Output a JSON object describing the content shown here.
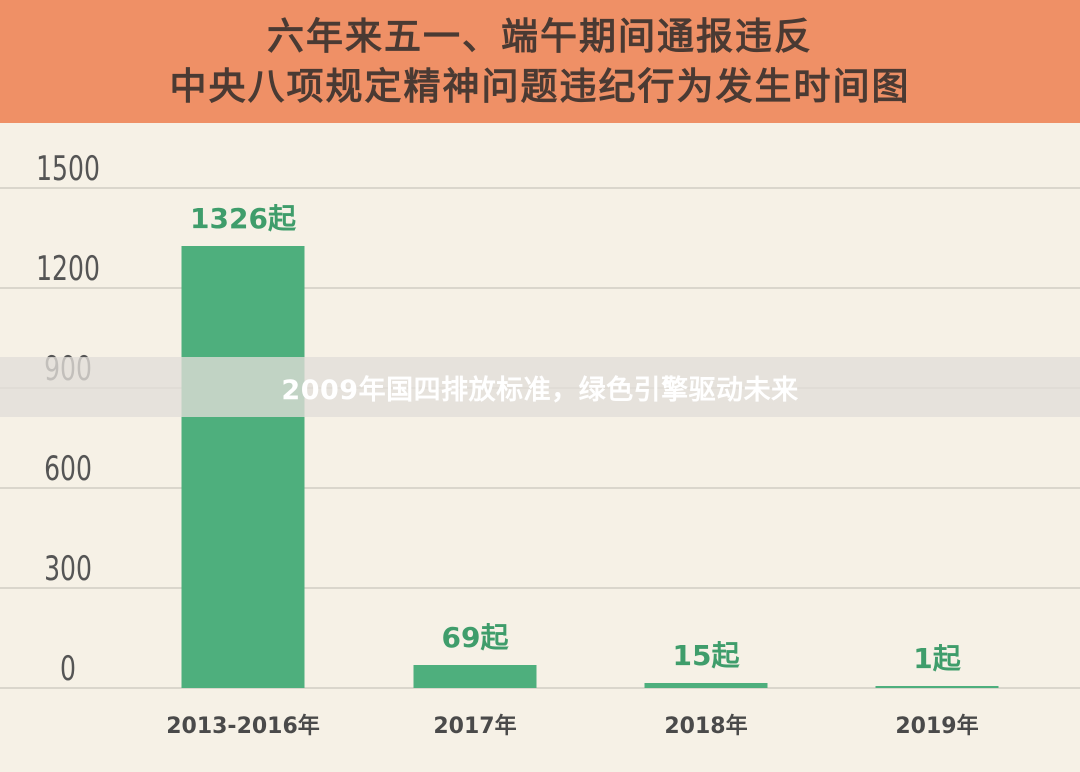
{
  "header": {
    "title_line1": "六年来五一、端午期间通报违反",
    "title_line2": "中央八项规定精神问题违纪行为发生时间图"
  },
  "overlay": {
    "text": "2009年国四排放标准，绿色引擎驱动未来"
  },
  "colors": {
    "header_bg": "#ef9066",
    "bar": "#4eaf7d",
    "label": "#3f9d6b",
    "axis_text": "#555555",
    "grid": "#c9c5bc"
  },
  "chart_data": {
    "type": "bar",
    "title": "六年来五一、端午期间通报违反中央八项规定精神问题违纪行为发生时间图",
    "categories": [
      "2013-2016年",
      "2017年",
      "2018年",
      "2019年"
    ],
    "values": [
      1326,
      69,
      15,
      1
    ],
    "data_labels": [
      "1326起",
      "69起",
      "15起",
      "1起"
    ],
    "ylim": [
      0,
      1500
    ],
    "yticks": [
      0,
      300,
      600,
      900,
      1200,
      1500
    ],
    "grid": true,
    "xlabel": "",
    "ylabel": ""
  }
}
